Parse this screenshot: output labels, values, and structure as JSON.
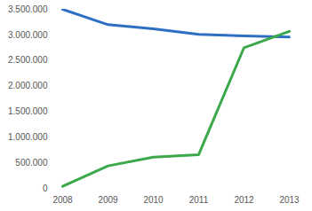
{
  "chart_data": {
    "type": "line",
    "categories": [
      "2008",
      "2009",
      "2010",
      "2011",
      "2012",
      "2013"
    ],
    "series": [
      {
        "color": "#2e6fc4",
        "values": [
          3500000,
          3200000,
          3120000,
          3010000,
          2980000,
          2960000
        ]
      },
      {
        "color": "#3ba84a",
        "values": [
          40000,
          440000,
          610000,
          660000,
          2750000,
          3070000
        ]
      }
    ],
    "ylim": [
      0,
      3500000
    ],
    "yticks": [
      {
        "value": 0,
        "label": "0"
      },
      {
        "value": 500000,
        "label": "500.000"
      },
      {
        "value": 1000000,
        "label": "1.000.000"
      },
      {
        "value": 1500000,
        "label": "1.500.000"
      },
      {
        "value": 2000000,
        "label": "2.000.000"
      },
      {
        "value": 2500000,
        "label": "2.500.000"
      },
      {
        "value": 3000000,
        "label": "3.000.000"
      },
      {
        "value": 3500000,
        "label": "3.500.000"
      }
    ],
    "grid": false
  }
}
